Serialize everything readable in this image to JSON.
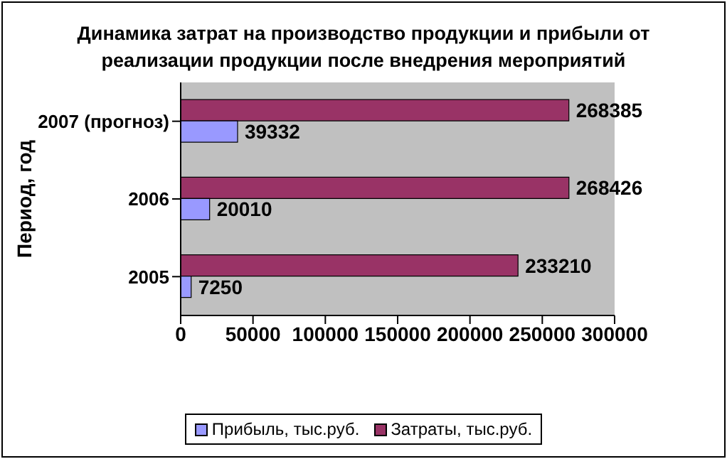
{
  "chart_data": {
    "type": "bar",
    "orientation": "horizontal",
    "title": "Динамика затрат на производство продукции и прибыли от реализации продукции после внедрения мероприятий",
    "ylabel": "Период, год",
    "categories": [
      "2007 (прогноз)",
      "2006",
      "2005"
    ],
    "series": [
      {
        "name": "Прибыль, тыс.руб.",
        "color": "#9999ff",
        "values": [
          39332,
          20010,
          7250
        ]
      },
      {
        "name": "Затраты, тыс.руб.",
        "color": "#993366",
        "values": [
          268385,
          268426,
          233210
        ]
      }
    ],
    "xlim": [
      0,
      300000
    ],
    "xticks": [
      0,
      50000,
      100000,
      150000,
      200000,
      250000,
      300000
    ],
    "data_labels": true,
    "grid": false,
    "legend": "bottom"
  }
}
